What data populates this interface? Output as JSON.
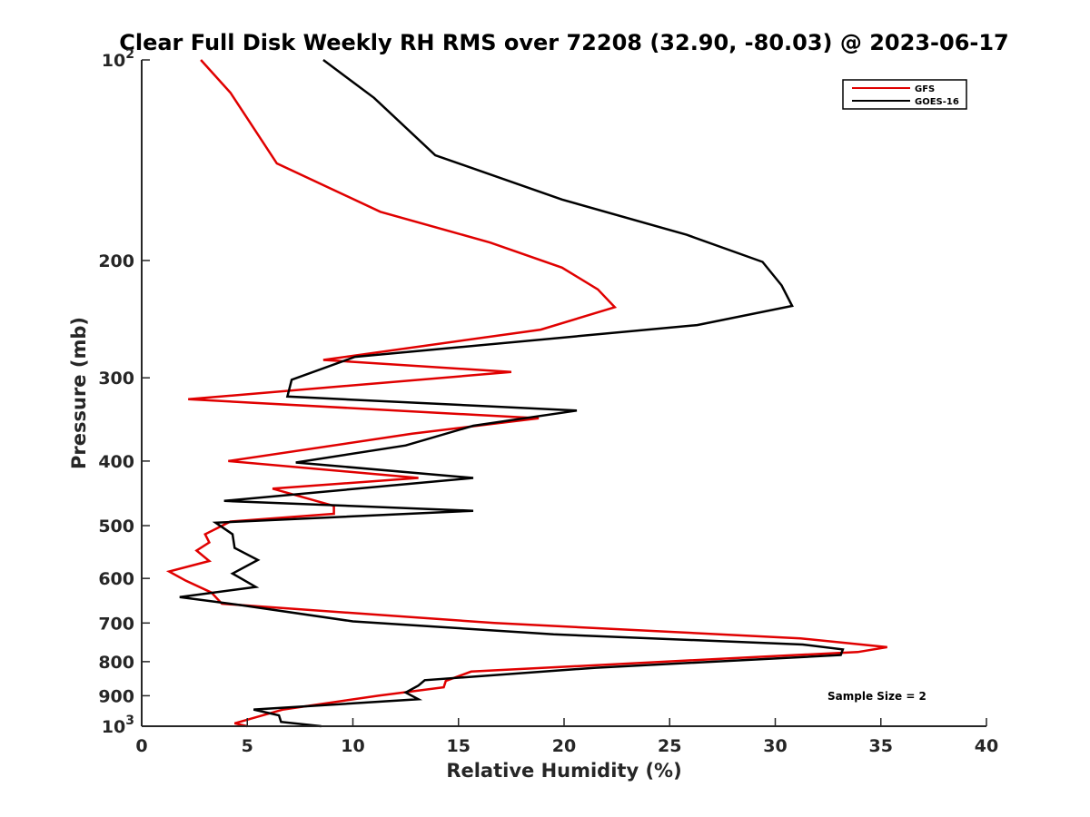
{
  "chart_data": {
    "type": "line",
    "title": "Clear Full Disk Weekly RH RMS over 72208 (32.90, -80.03) @ 2023-06-17",
    "xlabel": "Relative Humidity (%)",
    "ylabel": "Pressure (mb)",
    "xlim": [
      0,
      40
    ],
    "ylim": [
      100,
      1000
    ],
    "y_scale": "log",
    "y_reversed": true,
    "x_ticks": [
      0,
      5,
      10,
      15,
      20,
      25,
      30,
      35,
      40
    ],
    "y_ticks": [
      {
        "value": 100,
        "label": "10",
        "exp": "2"
      },
      {
        "value": 200,
        "label": "200"
      },
      {
        "value": 300,
        "label": "300"
      },
      {
        "value": 400,
        "label": "400"
      },
      {
        "value": 500,
        "label": "500"
      },
      {
        "value": 600,
        "label": "600"
      },
      {
        "value": 700,
        "label": "700"
      },
      {
        "value": 800,
        "label": "800"
      },
      {
        "value": 900,
        "label": "900"
      },
      {
        "value": 1000,
        "label": "10",
        "exp": "3"
      }
    ],
    "grid": false,
    "legend_position": "top-right",
    "series": [
      {
        "name": "GFS",
        "color": "#e00000",
        "x": [
          2.8,
          4.2,
          6.4,
          11.3,
          16.5,
          19.9,
          21.6,
          22.4,
          18.9,
          8.6,
          17.5,
          2.2,
          18.8,
          12.8,
          4.1,
          13.1,
          6.2,
          9.1,
          9.1,
          4.2,
          3.0,
          3.2,
          2.6,
          3.2,
          1.3,
          2.1,
          3.3,
          3.8,
          16.7,
          31.2,
          35.3,
          33.9,
          29.2,
          15.6,
          14.4,
          14.3,
          11.2,
          6.7,
          4.4,
          5.0
        ],
        "y": [
          100,
          112,
          143,
          169,
          188,
          205,
          221,
          235,
          254,
          282,
          294,
          323,
          345,
          364,
          400,
          424,
          440,
          467,
          480,
          493,
          515,
          530,
          545,
          565,
          586,
          605,
          630,
          655,
          700,
          738,
          761,
          774,
          787,
          828,
          855,
          874,
          900,
          944,
          990,
          1000
        ]
      },
      {
        "name": "GOES-16",
        "color": "#000000",
        "x": [
          8.6,
          11.0,
          13.9,
          19.9,
          25.8,
          29.4,
          30.3,
          30.8,
          26.3,
          10.1,
          7.1,
          6.9,
          20.6,
          15.7,
          12.5,
          7.3,
          15.7,
          3.9,
          15.7,
          3.5,
          4.3,
          4.4,
          5.5,
          4.3,
          5.4,
          1.8,
          4.7,
          10.0,
          19.5,
          31.3,
          33.2,
          33.1,
          21.5,
          13.4,
          13.1,
          12.5,
          13.1,
          5.3,
          6.5,
          6.6,
          8.5
        ],
        "y": [
          100,
          114,
          139,
          162,
          183,
          201,
          218,
          234,
          250,
          279,
          302,
          320,
          336,
          354,
          379,
          402,
          424,
          459,
          475,
          495,
          515,
          540,
          563,
          590,
          618,
          640,
          658,
          696,
          728,
          754,
          767,
          782,
          817,
          853,
          869,
          890,
          911,
          944,
          963,
          985,
          1000
        ]
      }
    ],
    "annotations": [
      "Sample Size = 2"
    ]
  }
}
